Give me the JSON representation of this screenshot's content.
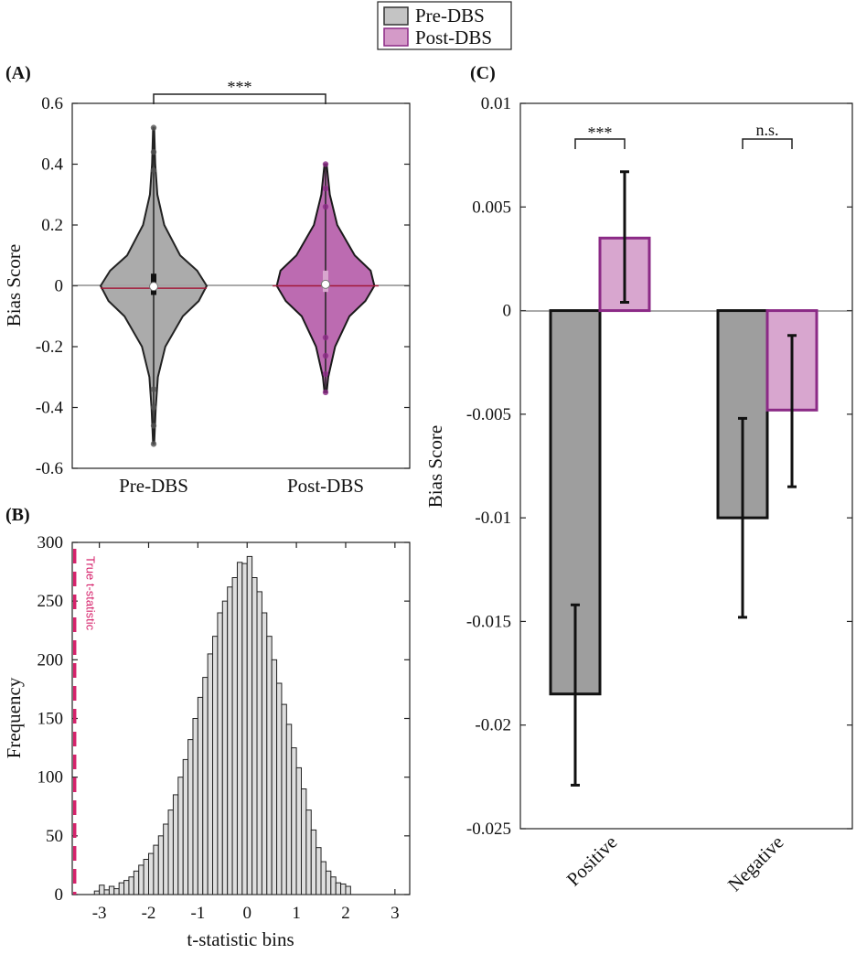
{
  "legend": {
    "items": [
      {
        "label": "Pre-DBS",
        "color": "#c4c4c4",
        "edge": "#333333"
      },
      {
        "label": "Post-DBS",
        "color": "#d49ac8",
        "edge": "#8b2a86"
      }
    ]
  },
  "colors": {
    "pre_fill": "#a6a6a6",
    "pre_light": "#d9d9d9",
    "post_fill": "#b863ad",
    "post_light": "#d8a6cf",
    "post_edge": "#8b2a86",
    "median_line": "#a31a3a",
    "true_t": "#d6226b"
  },
  "chart_data": [
    {
      "panel": "(A)",
      "type": "violin",
      "ylabel": "Bias Score",
      "ylim": [
        -0.6,
        0.6
      ],
      "yticks": [
        -0.6,
        -0.4,
        -0.2,
        0,
        0.2,
        0.4,
        0.6
      ],
      "ytick_labels": [
        "-0.6",
        "-0.4",
        "-0.2",
        "0",
        "0.2",
        "0.4",
        "0.6"
      ],
      "categories": [
        "Pre-DBS",
        "Post-DBS"
      ],
      "significance": "***",
      "series": [
        {
          "name": "Pre-DBS",
          "median": -0.002,
          "mean": -0.008,
          "min": -0.52,
          "max": 0.52,
          "q1": -0.03,
          "q3": 0.04,
          "density": [
            [
              -0.52,
              0.01
            ],
            [
              -0.4,
              0.04
            ],
            [
              -0.3,
              0.08
            ],
            [
              -0.2,
              0.22
            ],
            [
              -0.1,
              0.55
            ],
            [
              -0.05,
              0.85
            ],
            [
              0,
              1.0
            ],
            [
              0.05,
              0.82
            ],
            [
              0.1,
              0.5
            ],
            [
              0.2,
              0.2
            ],
            [
              0.3,
              0.07
            ],
            [
              0.4,
              0.03
            ],
            [
              0.52,
              0.01
            ]
          ]
        },
        {
          "name": "Post-DBS",
          "median": 0.005,
          "mean": 0.0,
          "min": -0.35,
          "max": 0.4,
          "q1": -0.02,
          "q3": 0.05,
          "density": [
            [
              -0.35,
              0.02
            ],
            [
              -0.3,
              0.05
            ],
            [
              -0.2,
              0.18
            ],
            [
              -0.1,
              0.45
            ],
            [
              -0.05,
              0.75
            ],
            [
              0,
              0.92
            ],
            [
              0.05,
              0.85
            ],
            [
              0.1,
              0.55
            ],
            [
              0.2,
              0.22
            ],
            [
              0.3,
              0.08
            ],
            [
              0.4,
              0.02
            ]
          ]
        }
      ]
    },
    {
      "panel": "(B)",
      "type": "bar",
      "subtype": "histogram",
      "xlabel": "t-statistic bins",
      "ylabel": "Frequency",
      "xlim": [
        -3.55,
        3.3
      ],
      "ylim": [
        0,
        300
      ],
      "xticks": [
        -3,
        -2,
        -1,
        0,
        1,
        2,
        3
      ],
      "xtick_labels": [
        "-3",
        "-2",
        "-1",
        "0",
        "1",
        "2",
        "3"
      ],
      "yticks": [
        0,
        50,
        100,
        150,
        200,
        250,
        300
      ],
      "ytick_labels": [
        "0",
        "50",
        "100",
        "150",
        "200",
        "250",
        "300"
      ],
      "annotation": "True t-statistic",
      "true_t": -3.5,
      "bin_start": -3.1,
      "bin_width": 0.1,
      "values": [
        3,
        8,
        4,
        7,
        5,
        10,
        12,
        15,
        20,
        25,
        30,
        35,
        42,
        50,
        60,
        72,
        85,
        100,
        115,
        132,
        150,
        168,
        185,
        205,
        220,
        240,
        250,
        262,
        270,
        283,
        282,
        288,
        270,
        258,
        240,
        220,
        200,
        180,
        162,
        145,
        125,
        108,
        90,
        72,
        55,
        40,
        28,
        20,
        15,
        10,
        9,
        7
      ]
    },
    {
      "panel": "(C)",
      "type": "bar",
      "ylabel": "Bias Score",
      "ylim": [
        -0.025,
        0.01
      ],
      "yticks": [
        -0.025,
        -0.02,
        -0.015,
        -0.01,
        -0.005,
        0,
        0.005,
        0.01
      ],
      "ytick_labels": [
        "-0.025",
        "-0.02",
        "-0.015",
        "-0.01",
        "-0.005",
        "0",
        "0.005",
        "0.01"
      ],
      "categories": [
        "Positive",
        "Negative"
      ],
      "significance": [
        "***",
        "n.s."
      ],
      "series": [
        {
          "name": "Pre-DBS",
          "values": [
            -0.0185,
            -0.01
          ],
          "err_low": [
            -0.0229,
            -0.0148
          ],
          "err_high": [
            -0.0142,
            -0.0052
          ]
        },
        {
          "name": "Post-DBS",
          "values": [
            0.0035,
            -0.0048
          ],
          "err_low": [
            0.0004,
            -0.0085
          ],
          "err_high": [
            0.0067,
            -0.0012
          ]
        }
      ]
    }
  ]
}
